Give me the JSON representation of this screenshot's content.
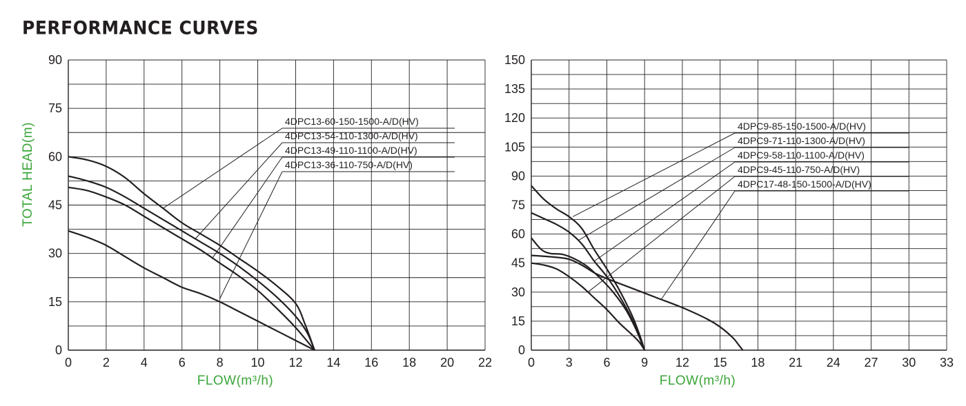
{
  "title": "PERFORMANCE CURVES",
  "colors": {
    "curve": "#231f20",
    "grid": "#231f20",
    "axis_label": "#3aa538"
  },
  "chart_data": [
    {
      "type": "line",
      "xlabel": "FLOW(m³/h)",
      "ylabel": "TOTAL HEAD(m)",
      "xlim": [
        0,
        22
      ],
      "ylim": [
        0,
        90
      ],
      "xticks": [
        0,
        2,
        4,
        6,
        8,
        10,
        12,
        14,
        16,
        18,
        20,
        22
      ],
      "yticks": [
        0,
        15,
        30,
        45,
        60,
        75,
        90
      ],
      "grid": true,
      "legend_labels": [
        "4DPC13-60-150-1500-A/D(HV)",
        "4DPC13-54-110-1300-A/D(HV)",
        "4DPC13-49-110-1100-A/D(HV)",
        "4DPC13-36-110-750-A/D(HV)"
      ],
      "series": [
        {
          "name": "4DPC13-60-150-1500-A/D(HV)",
          "leader_at": [
            5,
            44
          ],
          "points": [
            [
              0,
              60
            ],
            [
              1,
              59
            ],
            [
              2,
              57
            ],
            [
              3,
              53.5
            ],
            [
              4,
              48.5
            ],
            [
              5,
              44
            ],
            [
              6,
              39.5
            ],
            [
              7,
              36
            ],
            [
              8,
              32.5
            ],
            [
              9,
              28.5
            ],
            [
              10,
              24.5
            ],
            [
              11,
              20
            ],
            [
              12,
              14.5
            ],
            [
              12.5,
              8
            ],
            [
              13,
              0
            ]
          ]
        },
        {
          "name": "4DPC13-54-110-1300-A/D(HV)",
          "leader_at": [
            6.7,
            34.5
          ],
          "points": [
            [
              0,
              54
            ],
            [
              1,
              52.5
            ],
            [
              2,
              50.5
            ],
            [
              3,
              47.5
            ],
            [
              4,
              44
            ],
            [
              5,
              40.5
            ],
            [
              6,
              37
            ],
            [
              7,
              33.5
            ],
            [
              8,
              30
            ],
            [
              9,
              26
            ],
            [
              10,
              21.5
            ],
            [
              11,
              16.5
            ],
            [
              12,
              10.5
            ],
            [
              12.6,
              5.5
            ],
            [
              13,
              0
            ]
          ]
        },
        {
          "name": "4DPC13-49-110-1100-A/D(HV)",
          "leader_at": [
            7.6,
            28.5
          ],
          "points": [
            [
              0,
              50.5
            ],
            [
              1,
              49.5
            ],
            [
              2,
              47.5
            ],
            [
              3,
              45
            ],
            [
              4,
              41.5
            ],
            [
              5,
              38
            ],
            [
              6,
              34.5
            ],
            [
              7,
              31
            ],
            [
              8,
              27
            ],
            [
              9,
              23
            ],
            [
              10,
              18.5
            ],
            [
              11,
              13
            ],
            [
              12,
              7
            ],
            [
              13,
              0
            ]
          ]
        },
        {
          "name": "4DPC13-36-110-750-A/D(HV)",
          "leader_at": [
            8,
            16
          ],
          "points": [
            [
              0,
              37
            ],
            [
              1,
              35
            ],
            [
              2,
              32.5
            ],
            [
              3,
              29
            ],
            [
              4,
              25.5
            ],
            [
              5,
              22.5
            ],
            [
              6,
              19.5
            ],
            [
              7,
              17.5
            ],
            [
              8,
              15
            ],
            [
              9,
              12
            ],
            [
              10,
              9
            ],
            [
              11,
              6
            ],
            [
              12,
              3
            ],
            [
              13,
              0
            ]
          ]
        }
      ]
    },
    {
      "type": "line",
      "xlabel": "FLOW(m³/h)",
      "ylabel": "",
      "xlim": [
        0,
        33
      ],
      "ylim": [
        0,
        150
      ],
      "xticks": [
        0,
        3,
        6,
        9,
        12,
        15,
        18,
        21,
        24,
        27,
        30,
        33
      ],
      "yticks": [
        0,
        15,
        30,
        45,
        60,
        75,
        90,
        105,
        120,
        135,
        150
      ],
      "grid": true,
      "legend_labels": [
        "4DPC9-85-150-1500-A/D(HV)",
        "4DPC9-71-110-1300-A/D(HV)",
        "4DPC9-58-110-1100-A/D(HV)",
        "4DPC9-45-110-750-A/D(HV)",
        "4DPC17-48-150-1500-A/D(HV)"
      ],
      "series": [
        {
          "name": "4DPC9-85-150-1500-A/D(HV)",
          "leader_at": [
            3.3,
            69
          ],
          "points": [
            [
              0,
              85
            ],
            [
              1,
              78
            ],
            [
              2,
              73
            ],
            [
              3,
              69
            ],
            [
              4,
              63
            ],
            [
              5,
              52
            ],
            [
              6,
              42
            ],
            [
              7,
              31
            ],
            [
              8,
              18
            ],
            [
              8.6,
              8
            ],
            [
              9,
              0
            ]
          ]
        },
        {
          "name": "4DPC9-71-110-1300-A/D(HV)",
          "leader_at": [
            3.8,
            57
          ],
          "points": [
            [
              0,
              71
            ],
            [
              1,
              68
            ],
            [
              2,
              65
            ],
            [
              3,
              61
            ],
            [
              4,
              55
            ],
            [
              5,
              46
            ],
            [
              6,
              38
            ],
            [
              7,
              28
            ],
            [
              8,
              16
            ],
            [
              9,
              0
            ]
          ]
        },
        {
          "name": "4DPC9-58-110-1100-A/D(HV)",
          "leader_at": [
            5,
            46
          ],
          "points": [
            [
              0,
              58
            ],
            [
              0.8,
              52
            ],
            [
              1.5,
              50
            ],
            [
              2.5,
              49.5
            ],
            [
              3.5,
              47
            ],
            [
              4.5,
              43
            ],
            [
              5.5,
              37
            ],
            [
              6.5,
              30
            ],
            [
              7.5,
              21
            ],
            [
              8.3,
              11
            ],
            [
              9,
              0
            ]
          ]
        },
        {
          "name": "4DPC9-45-110-750-A/D(HV)",
          "leader_at": [
            4.5,
            30
          ],
          "points": [
            [
              0,
              45
            ],
            [
              1,
              44
            ],
            [
              2,
              42
            ],
            [
              3,
              38
            ],
            [
              4,
              33
            ],
            [
              5,
              27
            ],
            [
              6,
              21
            ],
            [
              7,
              14
            ],
            [
              8,
              8
            ],
            [
              8.6,
              4
            ],
            [
              9,
              0
            ]
          ]
        },
        {
          "name": "4DPC17-48-150-1500-A/D(HV)",
          "leader_at": [
            10.3,
            26
          ],
          "points": [
            [
              0,
              49
            ],
            [
              2,
              48
            ],
            [
              3,
              47
            ],
            [
              4,
              44
            ],
            [
              5,
              40
            ],
            [
              6,
              37
            ],
            [
              8,
              32
            ],
            [
              10,
              27
            ],
            [
              12,
              22
            ],
            [
              14,
              16
            ],
            [
              15,
              12
            ],
            [
              16,
              6.5
            ],
            [
              16.5,
              2.5
            ],
            [
              16.8,
              0
            ]
          ]
        }
      ]
    }
  ]
}
